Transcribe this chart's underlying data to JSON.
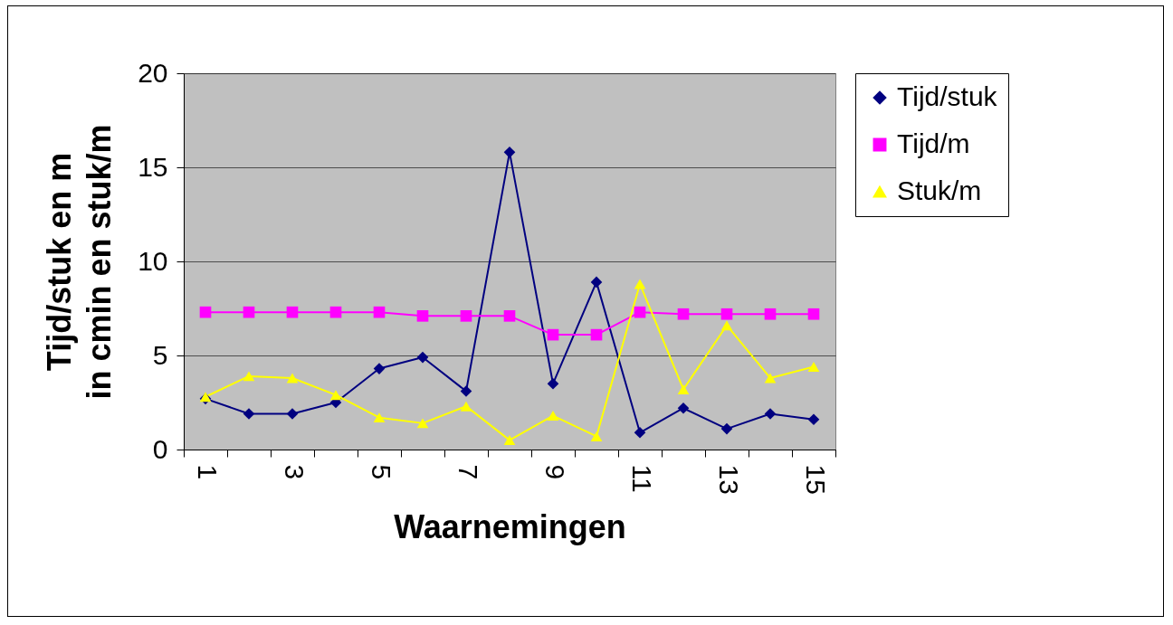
{
  "chart_data": {
    "type": "line",
    "xlabel": "Waarnemingen",
    "ylabel": "Tijd/stuk en m in cmin en stuk/m",
    "categories": [
      "1",
      null,
      "3",
      null,
      "5",
      null,
      "7",
      null,
      "9",
      null,
      "11",
      null,
      "13",
      null,
      "15"
    ],
    "series": [
      {
        "name": "Tijd/stuk",
        "color": "#000080",
        "marker": "diamond",
        "values": [
          2.7,
          1.9,
          1.9,
          2.5,
          4.3,
          4.9,
          3.1,
          15.8,
          3.5,
          8.9,
          0.9,
          2.2,
          1.1,
          1.9,
          1.6
        ]
      },
      {
        "name": "Tijd/m",
        "color": "#ff00ff",
        "marker": "square",
        "values": [
          7.3,
          7.3,
          7.3,
          7.3,
          7.3,
          7.1,
          7.1,
          7.1,
          6.1,
          6.1,
          7.3,
          7.2,
          7.2,
          7.2,
          7.2
        ]
      },
      {
        "name": "Stuk/m",
        "color": "#ffff00",
        "marker": "triangle",
        "values": [
          2.8,
          3.9,
          3.8,
          2.9,
          1.7,
          1.4,
          2.3,
          0.5,
          1.8,
          0.7,
          8.8,
          3.2,
          6.6,
          3.8,
          4.4
        ]
      }
    ],
    "ylim": [
      0,
      20
    ],
    "yticks": [
      0,
      5,
      10,
      15,
      20
    ],
    "grid": "y",
    "legend": "right"
  }
}
